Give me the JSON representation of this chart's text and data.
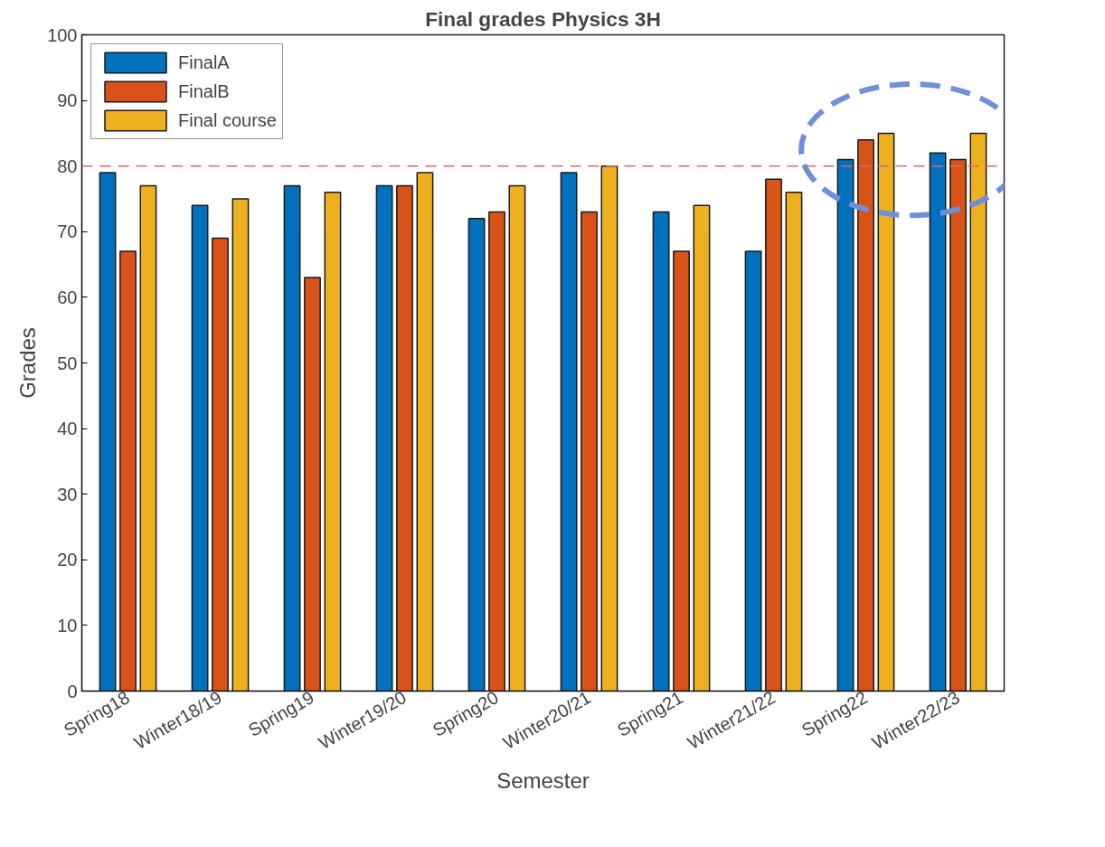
{
  "chart_data": {
    "type": "bar",
    "title": "Final grades Physics 3H",
    "xlabel": "Semester",
    "ylabel": "Grades",
    "categories": [
      "Spring18",
      "Winter18/19",
      "Spring19",
      "Winter19/20",
      "Spring20",
      "Winter20/21",
      "Spring21",
      "Winter21/22",
      "Spring22",
      "Winter22/23"
    ],
    "series": [
      {
        "name": "FinalA",
        "color": "#0072bd",
        "values": [
          79,
          74,
          77,
          77,
          72,
          79,
          73,
          67,
          81,
          82
        ]
      },
      {
        "name": "FinalB",
        "color": "#d95319",
        "values": [
          67,
          69,
          63,
          77,
          73,
          73,
          67,
          78,
          84,
          81
        ]
      },
      {
        "name": "Final course",
        "color": "#edb120",
        "values": [
          77,
          75,
          76,
          79,
          77,
          80,
          74,
          76,
          85,
          85
        ]
      }
    ],
    "ylim": [
      0,
      100
    ],
    "yticks": [
      0,
      10,
      20,
      30,
      40,
      50,
      60,
      70,
      80,
      90,
      100
    ],
    "ref_lines": [
      {
        "axis": "y",
        "value": 80,
        "color": "#e06666",
        "line_style": "dashed"
      }
    ],
    "grid": false,
    "legend": "top left"
  }
}
